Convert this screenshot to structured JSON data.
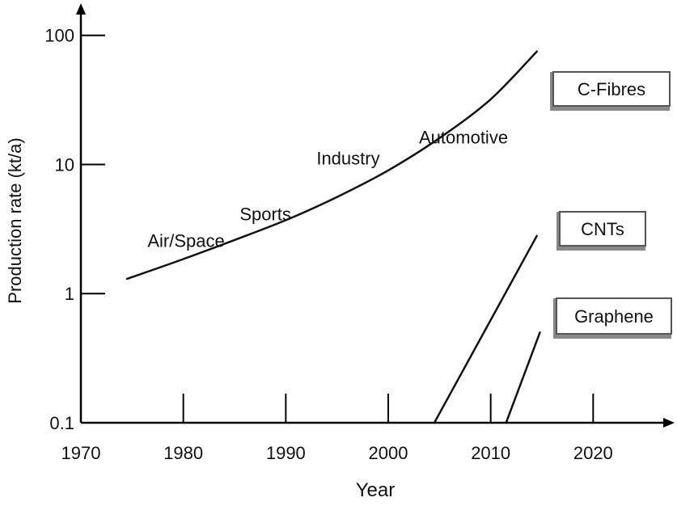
{
  "chart_data": {
    "type": "line",
    "title": "",
    "xlabel": "Year",
    "ylabel": "Production rate (kt/a)",
    "xlim": [
      1970,
      2027
    ],
    "ylim": [
      0.1,
      400
    ],
    "yscale": "log",
    "grid": false,
    "x_ticks": [
      1970,
      1980,
      1990,
      2000,
      2010,
      2020
    ],
    "x_tick_labels": [
      "1970",
      "1980",
      "1990",
      "2000",
      "2010",
      "2020"
    ],
    "y_ticks": [
      0.1,
      1,
      10,
      100
    ],
    "y_tick_labels": [
      "0.1",
      "1",
      "10",
      "100"
    ],
    "series": [
      {
        "name": "C-Fibres",
        "x": [
          1974.5,
          1980,
          1985,
          1990,
          1995,
          2000,
          2005,
          2010,
          2014.5
        ],
        "y": [
          1.3,
          1.85,
          2.6,
          3.7,
          5.6,
          9.0,
          16,
          32,
          75
        ]
      },
      {
        "name": "CNTs",
        "x": [
          2004.5,
          2014.5
        ],
        "y": [
          0.1,
          2.8
        ]
      },
      {
        "name": "Graphene",
        "x": [
          2011.5,
          2014.8
        ],
        "y": [
          0.1,
          0.5
        ]
      }
    ],
    "annotations": [
      {
        "text": "Air/Space",
        "x": 1976.5,
        "y": 2.3
      },
      {
        "text": "Sports",
        "x": 1985.5,
        "y": 3.7
      },
      {
        "text": "Industry",
        "x": 1993,
        "y": 10
      },
      {
        "text": "Automotive",
        "x": 2003,
        "y": 14.5
      }
    ]
  }
}
